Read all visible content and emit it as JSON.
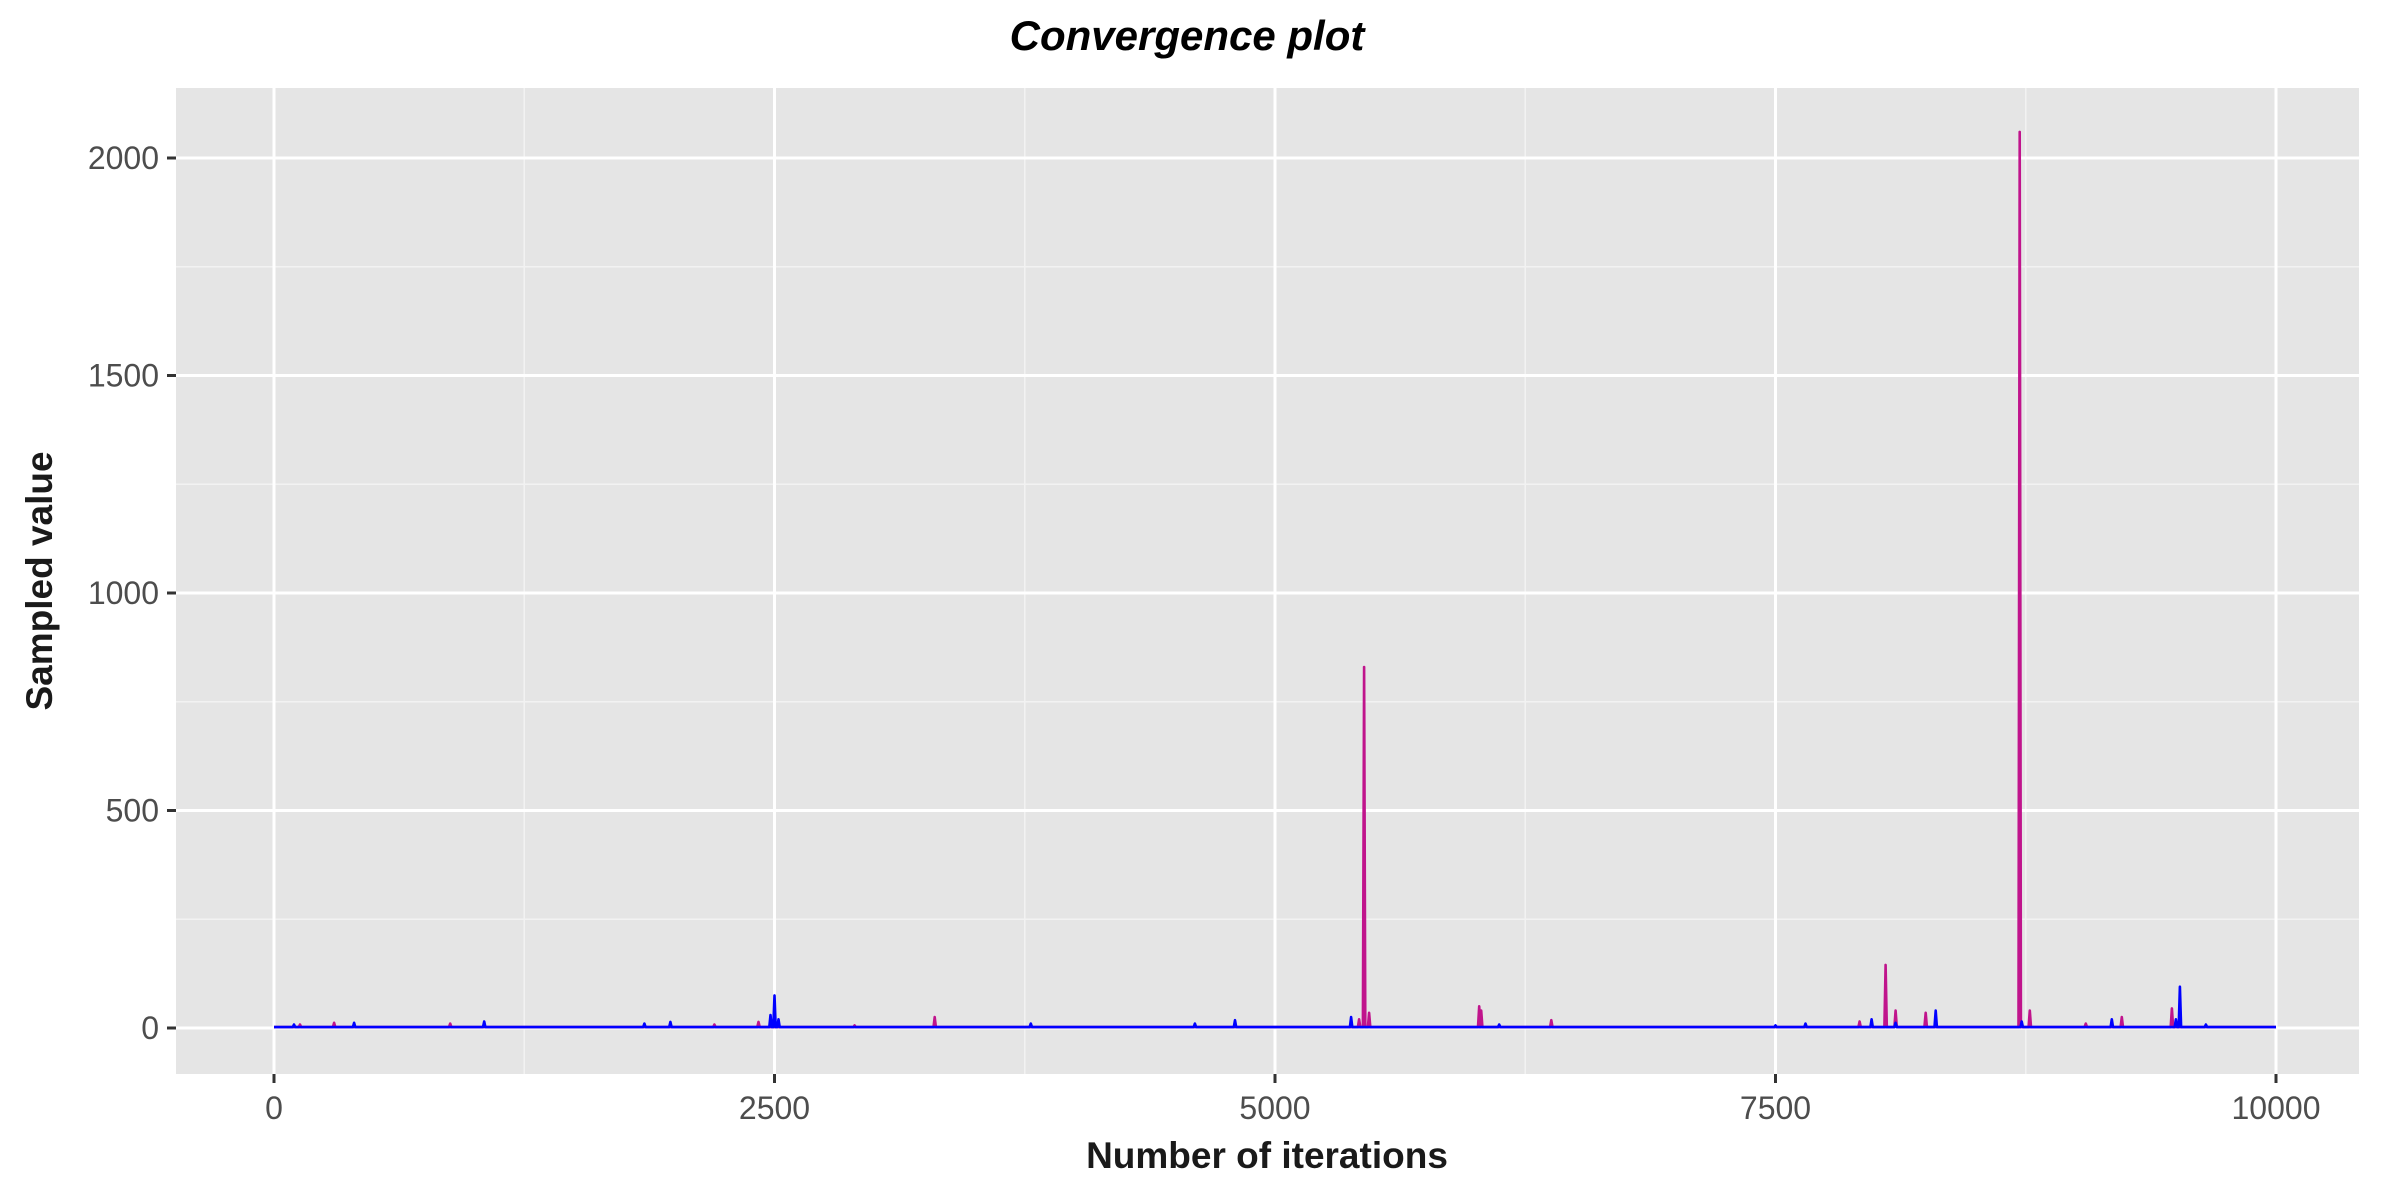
{
  "chart_data": {
    "type": "line",
    "title": "Convergence plot",
    "xlabel": "Number of iterations",
    "ylabel": "Sampled value",
    "xlim": [
      -500,
      10500
    ],
    "ylim": [
      -100,
      2160
    ],
    "x_ticks": [
      0,
      2500,
      5000,
      7500,
      10000
    ],
    "y_ticks": [
      0,
      500,
      1000,
      1500,
      2000
    ],
    "grid": true,
    "background": "#e5e5e5",
    "gridline_color": "#ffffff",
    "baseline": 2,
    "series": [
      {
        "color": "#c0148c",
        "spikes": [
          {
            "x": 130,
            "y": 8
          },
          {
            "x": 300,
            "y": 12
          },
          {
            "x": 880,
            "y": 10
          },
          {
            "x": 2200,
            "y": 8
          },
          {
            "x": 2420,
            "y": 14
          },
          {
            "x": 2900,
            "y": 6
          },
          {
            "x": 3300,
            "y": 25
          },
          {
            "x": 5420,
            "y": 20
          },
          {
            "x": 5445,
            "y": 830
          },
          {
            "x": 5470,
            "y": 35
          },
          {
            "x": 6020,
            "y": 50
          },
          {
            "x": 6030,
            "y": 40
          },
          {
            "x": 6380,
            "y": 18
          },
          {
            "x": 7920,
            "y": 15
          },
          {
            "x": 8050,
            "y": 145
          },
          {
            "x": 8100,
            "y": 40
          },
          {
            "x": 8250,
            "y": 35
          },
          {
            "x": 8720,
            "y": 2060
          },
          {
            "x": 8770,
            "y": 40
          },
          {
            "x": 9230,
            "y": 25
          },
          {
            "x": 9480,
            "y": 45
          },
          {
            "x": 9050,
            "y": 10
          }
        ]
      },
      {
        "color": "#0000ff",
        "spikes": [
          {
            "x": 100,
            "y": 8
          },
          {
            "x": 400,
            "y": 12
          },
          {
            "x": 1050,
            "y": 15
          },
          {
            "x": 1850,
            "y": 10
          },
          {
            "x": 1980,
            "y": 14
          },
          {
            "x": 2480,
            "y": 30
          },
          {
            "x": 2500,
            "y": 75
          },
          {
            "x": 2520,
            "y": 20
          },
          {
            "x": 3780,
            "y": 10
          },
          {
            "x": 4600,
            "y": 10
          },
          {
            "x": 4800,
            "y": 18
          },
          {
            "x": 5380,
            "y": 25
          },
          {
            "x": 6120,
            "y": 8
          },
          {
            "x": 7500,
            "y": 6
          },
          {
            "x": 7650,
            "y": 10
          },
          {
            "x": 7980,
            "y": 20
          },
          {
            "x": 8100,
            "y": 12
          },
          {
            "x": 8300,
            "y": 40
          },
          {
            "x": 8730,
            "y": 15
          },
          {
            "x": 9180,
            "y": 20
          },
          {
            "x": 9500,
            "y": 20
          },
          {
            "x": 9520,
            "y": 95
          },
          {
            "x": 9650,
            "y": 8
          }
        ]
      }
    ]
  }
}
